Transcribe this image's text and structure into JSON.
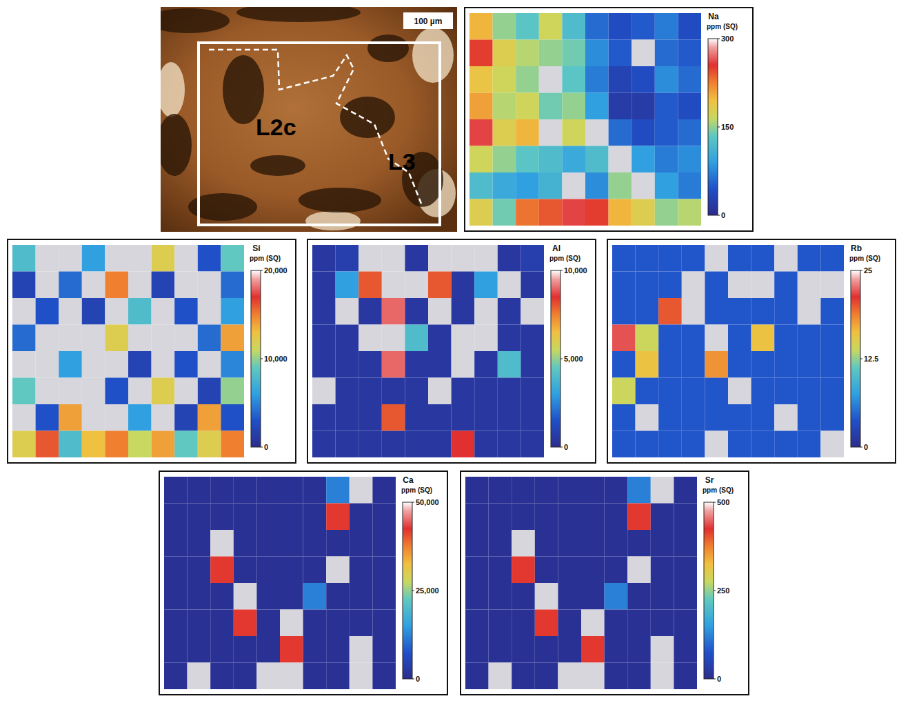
{
  "chart_data": [
    {
      "type": "image",
      "annotations": [
        "100 µm",
        "L2c",
        "L3"
      ]
    },
    {
      "type": "heatmap",
      "title": "Na",
      "tick_labels": false,
      "colorbar": {
        "label": "ppm (SQ)",
        "range": [
          0,
          300
        ],
        "ticks": [
          0,
          150,
          300
        ]
      },
      "cells": [
        [
          200,
          150,
          130,
          170,
          120,
          60,
          40,
          50,
          70,
          40
        ],
        [
          250,
          180,
          160,
          150,
          140,
          80,
          50,
          320,
          60,
          50
        ],
        [
          190,
          170,
          150,
          320,
          130,
          70,
          30,
          40,
          80,
          60
        ],
        [
          210,
          160,
          170,
          140,
          150,
          90,
          20,
          20,
          50,
          40
        ],
        [
          260,
          180,
          200,
          320,
          170,
          310,
          60,
          40,
          50,
          60
        ],
        [
          170,
          150,
          130,
          120,
          100,
          120,
          310,
          90,
          70,
          80
        ],
        [
          120,
          100,
          90,
          110,
          320,
          80,
          150,
          310,
          90,
          70
        ],
        [
          180,
          140,
          230,
          240,
          260,
          250,
          200,
          180,
          150,
          160
        ]
      ]
    },
    {
      "type": "heatmap",
      "title": "Si",
      "tick_labels": false,
      "colorbar": {
        "label": "ppm (SQ)",
        "range": [
          0,
          20000
        ],
        "ticks": [
          0,
          {
            "value": 10000,
            "label": "10,000"
          },
          {
            "value": 20000,
            "label": "20,000"
          }
        ]
      },
      "cells": [
        [
          8000,
          25000,
          25000,
          6000,
          25000,
          25000,
          12000,
          25000,
          3000,
          9000
        ],
        [
          2000,
          25000,
          4000,
          25000,
          15000,
          25000,
          2000,
          25000,
          25000,
          4000
        ],
        [
          25000,
          3000,
          25000,
          2000,
          25000,
          8000,
          25000,
          3000,
          25000,
          6000
        ],
        [
          4000,
          25000,
          25000,
          25000,
          12000,
          25000,
          25000,
          25000,
          4000,
          14000
        ],
        [
          25000,
          25000,
          6000,
          25000,
          25000,
          2000,
          25000,
          3000,
          25000,
          5000
        ],
        [
          9000,
          25000,
          25000,
          25000,
          3000,
          25000,
          12000,
          25000,
          2000,
          10000
        ],
        [
          25000,
          3000,
          14000,
          25000,
          25000,
          6000,
          25000,
          2000,
          14000,
          3000
        ],
        [
          12000,
          16000,
          8000,
          13000,
          15000,
          11000,
          14000,
          9000,
          12000,
          15000
        ]
      ]
    },
    {
      "type": "heatmap",
      "title": "Al",
      "tick_labels": false,
      "colorbar": {
        "label": "ppm (SQ)",
        "range": [
          0,
          10000
        ],
        "ticks": [
          0,
          {
            "value": 5000,
            "label": "5,000"
          },
          {
            "value": 10000,
            "label": "10,000"
          }
        ]
      },
      "cells": [
        [
          500,
          800,
          12000,
          12000,
          500,
          12000,
          12000,
          12000,
          500,
          800
        ],
        [
          500,
          3000,
          8000,
          12000,
          12000,
          8000,
          500,
          3000,
          12000,
          500
        ],
        [
          500,
          12000,
          500,
          9000,
          500,
          12000,
          500,
          12000,
          500,
          12000
        ],
        [
          500,
          500,
          12000,
          12000,
          4000,
          500,
          12000,
          12000,
          500,
          500
        ],
        [
          500,
          500,
          500,
          9000,
          500,
          500,
          12000,
          500,
          4000,
          500
        ],
        [
          12000,
          500,
          500,
          500,
          500,
          12000,
          500,
          500,
          500,
          500
        ],
        [
          500,
          500,
          500,
          8000,
          500,
          500,
          500,
          500,
          500,
          500
        ],
        [
          500,
          500,
          500,
          500,
          500,
          500,
          8500,
          500,
          500,
          500
        ]
      ]
    },
    {
      "type": "heatmap",
      "title": "Rb",
      "tick_labels": false,
      "colorbar": {
        "label": "ppm (SQ)",
        "range": [
          0,
          25
        ],
        "ticks": [
          0,
          12.5,
          25
        ]
      },
      "cells": [
        [
          4,
          4,
          4,
          4,
          30,
          4,
          4,
          30,
          4,
          4
        ],
        [
          4,
          4,
          4,
          30,
          4,
          30,
          30,
          4,
          30,
          30
        ],
        [
          4,
          4,
          20,
          30,
          4,
          4,
          4,
          4,
          30,
          4
        ],
        [
          22,
          14,
          4,
          4,
          30,
          4,
          16,
          4,
          4,
          4
        ],
        [
          4,
          16,
          4,
          4,
          18,
          4,
          4,
          4,
          4,
          4
        ],
        [
          14,
          4,
          4,
          4,
          4,
          30,
          4,
          4,
          4,
          4
        ],
        [
          4,
          30,
          4,
          4,
          4,
          4,
          4,
          30,
          4,
          4
        ],
        [
          4,
          4,
          4,
          4,
          30,
          4,
          4,
          4,
          4,
          30
        ]
      ]
    },
    {
      "type": "heatmap",
      "title": "Ca",
      "tick_labels": false,
      "colorbar": {
        "label": "ppm (SQ)",
        "range": [
          0,
          50000
        ],
        "ticks": [
          0,
          {
            "value": 25000,
            "label": "25,000"
          },
          {
            "value": 50000,
            "label": "50,000"
          }
        ]
      },
      "cells": [
        [
          1000,
          1000,
          1000,
          1000,
          1000,
          1000,
          1000,
          12000,
          60000,
          1000
        ],
        [
          1000,
          1000,
          1000,
          1000,
          1000,
          1000,
          1000,
          42000,
          1000,
          1000
        ],
        [
          1000,
          1000,
          60000,
          1000,
          1000,
          1000,
          1000,
          1000,
          1000,
          1000
        ],
        [
          1000,
          1000,
          42000,
          1000,
          1000,
          1000,
          1000,
          60000,
          1000,
          1000
        ],
        [
          1000,
          1000,
          1000,
          60000,
          1000,
          1000,
          12000,
          1000,
          1000,
          1000
        ],
        [
          1000,
          1000,
          1000,
          42000,
          1000,
          60000,
          1000,
          1000,
          1000,
          1000
        ],
        [
          1000,
          1000,
          1000,
          1000,
          1000,
          42000,
          1000,
          1000,
          60000,
          1000
        ],
        [
          1000,
          60000,
          1000,
          1000,
          60000,
          60000,
          1000,
          1000,
          60000,
          1000
        ]
      ]
    },
    {
      "type": "heatmap",
      "title": "Sr",
      "tick_labels": false,
      "colorbar": {
        "label": "ppm (SQ)",
        "range": [
          0,
          500
        ],
        "ticks": [
          0,
          250,
          500
        ]
      },
      "cells": [
        [
          10,
          10,
          10,
          10,
          10,
          10,
          10,
          120,
          600,
          10
        ],
        [
          10,
          10,
          10,
          10,
          10,
          10,
          10,
          420,
          10,
          10
        ],
        [
          10,
          10,
          600,
          10,
          10,
          10,
          10,
          10,
          10,
          10
        ],
        [
          10,
          10,
          420,
          10,
          10,
          10,
          10,
          600,
          10,
          10
        ],
        [
          10,
          10,
          10,
          600,
          10,
          10,
          120,
          10,
          10,
          10
        ],
        [
          10,
          10,
          10,
          420,
          10,
          600,
          10,
          10,
          10,
          10
        ],
        [
          10,
          10,
          10,
          10,
          10,
          420,
          10,
          10,
          600,
          10
        ],
        [
          10,
          600,
          10,
          10,
          600,
          600,
          10,
          10,
          600,
          10
        ]
      ]
    }
  ]
}
